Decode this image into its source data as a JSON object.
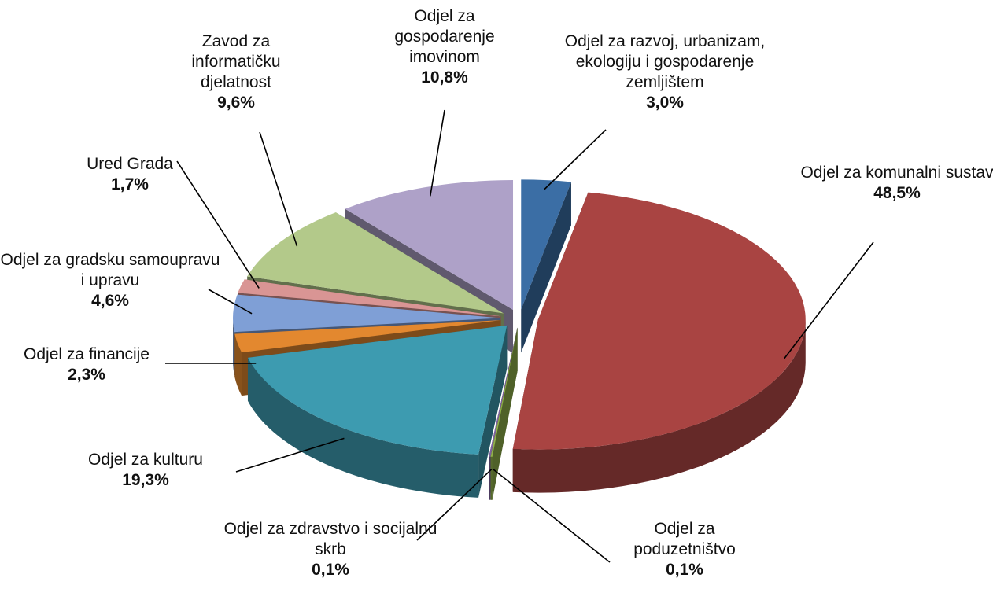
{
  "chart_data": {
    "type": "pie3d",
    "categories": [
      "Odjel za razvoj, urbanizam, ekologiju i gospodarenje zemljištem",
      "Odjel za komunalni sustav",
      "Odjel za poduzetništvo",
      "Odjel za zdravstvo i socijalnu skrb",
      "Odjel za kulturu",
      "Odjel za financije",
      "Odjel za gradsku samoupravu i upravu",
      "Ured Grada",
      "Zavod za informatičku djelatnost",
      "Odjel za gospodarenje imovinom"
    ],
    "values": [
      3.0,
      48.5,
      0.1,
      0.1,
      19.3,
      2.3,
      4.6,
      1.7,
      9.6,
      10.8
    ],
    "value_labels": [
      "3,0%",
      "48,5%",
      "0,1%",
      "0,1%",
      "19,3%",
      "2,3%",
      "4,6%",
      "1,7%",
      "9,6%",
      "10,8%"
    ],
    "colors": [
      "#3b6ea5",
      "#a94442",
      "#8fb04a",
      "#7e62a0",
      "#3d9bb0",
      "#e3882f",
      "#7f9fd6",
      "#d99594",
      "#b3c98a",
      "#aea1c8"
    ]
  }
}
